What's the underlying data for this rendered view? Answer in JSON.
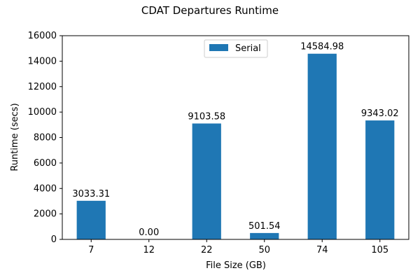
{
  "chart_data": {
    "type": "bar",
    "title": "CDAT Departures Runtime",
    "xlabel": "File Size (GB)",
    "ylabel": "Runtime (secs)",
    "categories": [
      "7",
      "12",
      "22",
      "50",
      "74",
      "105"
    ],
    "series": [
      {
        "name": "Serial",
        "values": [
          3033.31,
          0.0,
          9103.58,
          501.54,
          14584.98,
          9343.02
        ],
        "labels": [
          "3033.31",
          "0.00",
          "9103.58",
          "501.54",
          "14584.98",
          "9343.02"
        ],
        "color": "#1f77b4"
      }
    ],
    "ylim": [
      0,
      16000
    ],
    "yticks": [
      0,
      2000,
      4000,
      6000,
      8000,
      10000,
      12000,
      14000,
      16000
    ],
    "grid": false,
    "legend_position": "top-center"
  }
}
